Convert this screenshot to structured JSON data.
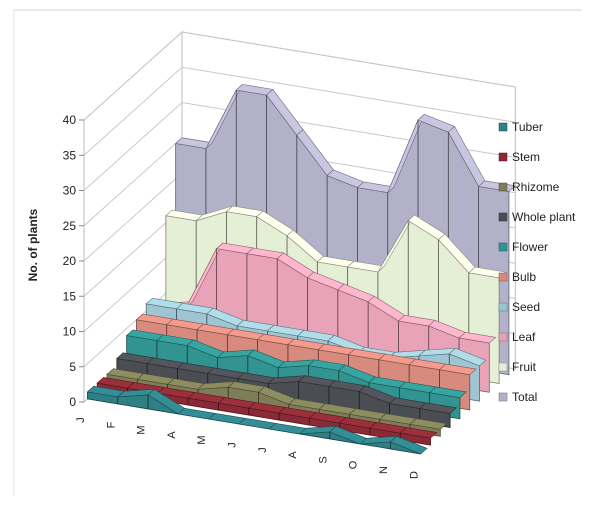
{
  "chart_data": {
    "type": "area",
    "subtype": "3d-ribbon",
    "ylabel": "No. of plants",
    "xlabel": "",
    "ylim": [
      0,
      40
    ],
    "yticks": [
      0,
      5,
      10,
      15,
      20,
      25,
      30,
      35,
      40
    ],
    "categories": [
      "J",
      "F",
      "M",
      "A",
      "M",
      "J",
      "J",
      "A",
      "S",
      "O",
      "N",
      "D"
    ],
    "grid": true,
    "legend_position": "right",
    "series": [
      {
        "name": "Tuber",
        "color": "#2e7f86",
        "values": [
          1,
          1,
          2,
          0,
          0,
          0,
          0,
          0,
          1,
          0,
          1,
          0
        ]
      },
      {
        "name": "Stem",
        "color": "#8a2a36",
        "values": [
          1,
          1,
          1,
          1,
          1,
          1,
          1,
          1,
          1,
          1,
          1,
          1
        ]
      },
      {
        "name": "Rhizome",
        "color": "#7f7d57",
        "values": [
          1,
          1,
          1,
          1,
          2,
          2,
          1,
          1,
          1,
          1,
          1,
          1
        ]
      },
      {
        "name": "Whole plant",
        "color": "#4a4d52",
        "values": [
          2,
          2,
          2,
          2,
          2,
          2,
          3,
          3,
          3,
          2,
          2,
          2
        ]
      },
      {
        "name": "Flower",
        "color": "#319491",
        "values": [
          4,
          4,
          4,
          3,
          4,
          3,
          4,
          4,
          3,
          3,
          3,
          3
        ]
      },
      {
        "name": "Bulb",
        "color": "#d98a7e",
        "values": [
          5,
          5,
          5,
          5,
          5,
          5,
          5,
          5,
          5,
          5,
          5,
          5
        ]
      },
      {
        "name": "Seed",
        "color": "#9ec5d1",
        "values": [
          6,
          6,
          6,
          5,
          5,
          5,
          5,
          4,
          4,
          5,
          6,
          5
        ]
      },
      {
        "name": "Leaf",
        "color": "#e8a3b8",
        "values": [
          4,
          5,
          14,
          14,
          14,
          12,
          11,
          10,
          8,
          8,
          7,
          7
        ]
      },
      {
        "name": "Fruit",
        "color": "#e4efd5",
        "values": [
          16,
          16,
          18,
          18,
          16,
          13,
          13,
          13,
          21,
          19,
          15,
          15
        ]
      },
      {
        "name": "Total",
        "color": "#b3b1c9",
        "values": [
          25,
          25,
          34,
          34,
          29,
          24,
          23,
          23,
          34,
          33,
          26,
          26
        ]
      }
    ]
  }
}
